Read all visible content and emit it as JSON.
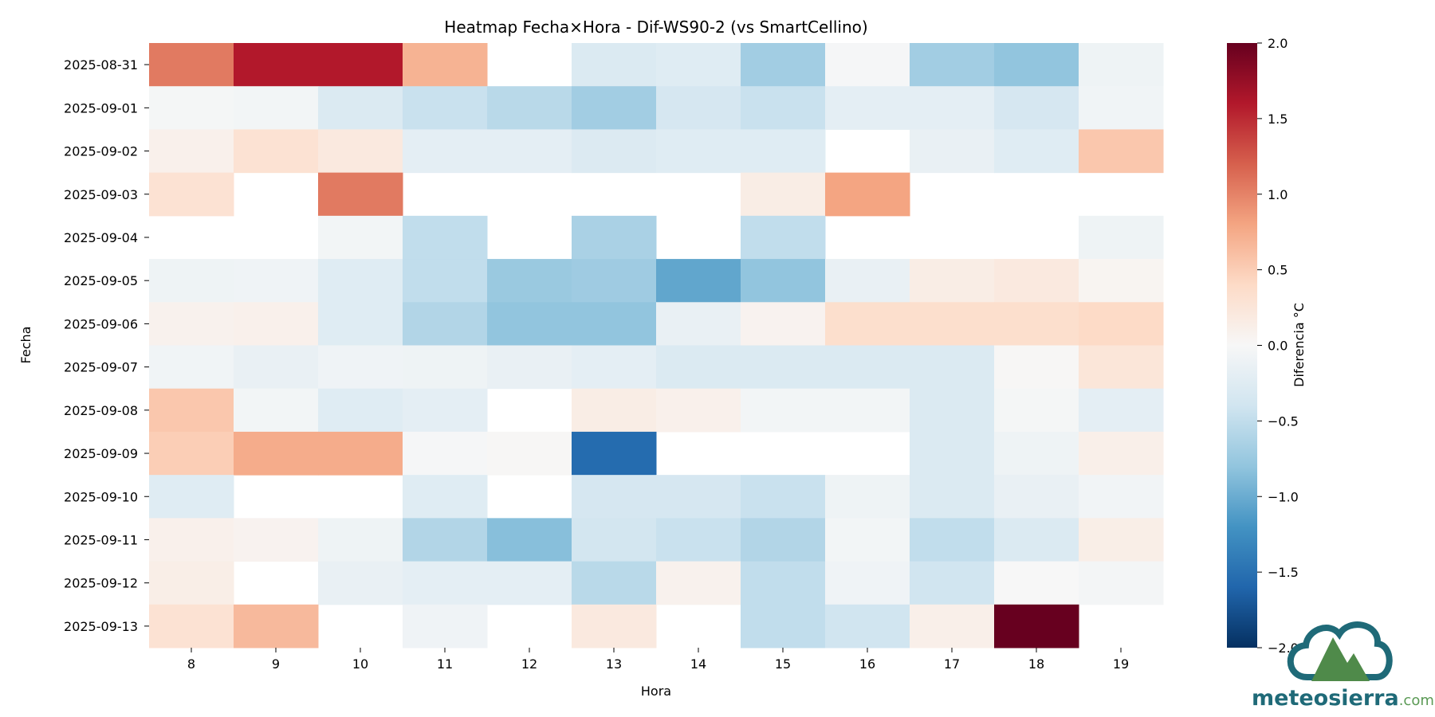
{
  "chart_data": {
    "type": "heatmap",
    "title": "Heatmap Fecha×Hora - Dif-WS90-2 (vs SmartCellino)",
    "xlabel": "Hora",
    "ylabel": "Fecha",
    "colorbar_label": "Diferencia °C",
    "colormap": "RdBu_r",
    "vmin": -2.0,
    "vmax": 2.0,
    "colorbar_ticks": [
      "2.0",
      "1.5",
      "1.0",
      "0.5",
      "0.0",
      "−0.5",
      "−1.0",
      "−1.5",
      "−2.0"
    ],
    "x": [
      "8",
      "9",
      "10",
      "11",
      "12",
      "13",
      "14",
      "15",
      "16",
      "17",
      "18",
      "19"
    ],
    "y": [
      "2025-08-31",
      "2025-09-01",
      "2025-09-02",
      "2025-09-03",
      "2025-09-04",
      "2025-09-05",
      "2025-09-06",
      "2025-09-07",
      "2025-09-08",
      "2025-09-09",
      "2025-09-10",
      "2025-09-11",
      "2025-09-12",
      "2025-09-13"
    ],
    "values": [
      [
        1.05,
        1.6,
        1.6,
        0.7,
        null,
        -0.3,
        -0.25,
        -0.7,
        -0.02,
        -0.7,
        -0.8,
        -0.1
      ],
      [
        -0.03,
        -0.05,
        -0.3,
        -0.45,
        -0.55,
        -0.7,
        -0.35,
        -0.45,
        -0.2,
        -0.2,
        -0.35,
        -0.07
      ],
      [
        0.1,
        0.3,
        0.2,
        -0.2,
        -0.2,
        -0.28,
        -0.25,
        -0.25,
        null,
        -0.15,
        -0.25,
        0.55
      ],
      [
        0.3,
        null,
        1.05,
        null,
        null,
        null,
        null,
        0.15,
        0.8,
        null,
        null,
        null
      ],
      [
        null,
        null,
        -0.05,
        -0.5,
        null,
        -0.65,
        null,
        -0.5,
        null,
        null,
        null,
        -0.1
      ],
      [
        -0.1,
        -0.08,
        -0.25,
        -0.5,
        -0.75,
        -0.72,
        -1.05,
        -0.8,
        -0.15,
        0.15,
        0.2,
        0.05
      ],
      [
        0.08,
        0.1,
        -0.25,
        -0.6,
        -0.8,
        -0.8,
        -0.15,
        0.07,
        0.35,
        0.35,
        0.35,
        0.4
      ],
      [
        -0.07,
        -0.15,
        -0.08,
        -0.1,
        -0.15,
        -0.2,
        -0.3,
        -0.3,
        -0.3,
        -0.3,
        0.02,
        0.25
      ],
      [
        0.55,
        -0.05,
        -0.25,
        -0.2,
        null,
        0.15,
        0.1,
        -0.05,
        -0.05,
        -0.3,
        -0.03,
        -0.2
      ],
      [
        0.5,
        0.75,
        0.75,
        -0.02,
        0.02,
        -1.55,
        null,
        null,
        null,
        -0.3,
        -0.1,
        0.12
      ],
      [
        -0.25,
        null,
        null,
        -0.25,
        null,
        -0.35,
        -0.35,
        -0.45,
        -0.1,
        -0.3,
        -0.15,
        -0.06
      ],
      [
        0.1,
        0.07,
        -0.1,
        -0.6,
        -0.85,
        -0.38,
        -0.45,
        -0.6,
        -0.05,
        -0.5,
        -0.3,
        0.13
      ],
      [
        0.13,
        null,
        -0.15,
        -0.2,
        -0.2,
        -0.55,
        0.08,
        -0.5,
        -0.08,
        -0.4,
        0.0,
        -0.04
      ],
      [
        0.3,
        0.65,
        null,
        -0.08,
        null,
        0.2,
        null,
        -0.5,
        -0.4,
        0.12,
        2.0,
        null
      ]
    ]
  },
  "logo": {
    "text_main": "meteosierra",
    "text_suffix": ".com"
  }
}
